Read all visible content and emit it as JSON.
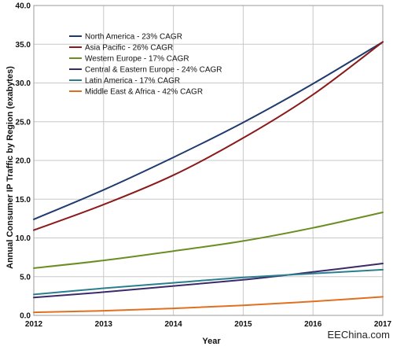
{
  "chart_data": {
    "type": "line",
    "title": "",
    "xlabel": "Year",
    "ylabel": "Annual Consumer IP Traffic by Region (exabytes)",
    "x": [
      2012,
      2013,
      2014,
      2015,
      2016,
      2017
    ],
    "x_tick_labels": [
      "2012",
      "2013",
      "2014",
      "2015",
      "2016",
      "2017"
    ],
    "y_tick_labels": [
      "0.0",
      "5.0",
      "10.0",
      "15.0",
      "20.0",
      "25.0",
      "30.0",
      "35.0",
      "40.0"
    ],
    "ylim": [
      0,
      40
    ],
    "xlim": [
      2012,
      2017
    ],
    "grid": true,
    "legend_position": "top-left",
    "series": [
      {
        "name": "North America - 23% CAGR",
        "color": "#1f3a6e",
        "values": [
          12.4,
          16.2,
          20.4,
          24.9,
          29.9,
          35.3
        ]
      },
      {
        "name": "Asia Pacific - 26% CAGR",
        "color": "#8b1a1a",
        "values": [
          11.0,
          14.3,
          18.1,
          22.9,
          28.5,
          35.3
        ]
      },
      {
        "name": "Western Europe - 17% CAGR",
        "color": "#6b8e23",
        "values": [
          6.1,
          7.1,
          8.3,
          9.6,
          11.3,
          13.3
        ]
      },
      {
        "name": "Central & Eastern Europe - 24% CAGR",
        "color": "#3b2a6b",
        "values": [
          2.3,
          3.0,
          3.8,
          4.6,
          5.6,
          6.7
        ]
      },
      {
        "name": "Latin America - 17% CAGR",
        "color": "#2a7f8f",
        "values": [
          2.7,
          3.5,
          4.2,
          4.9,
          5.4,
          5.9
        ]
      },
      {
        "name": "Middle East & Africa - 42% CAGR",
        "color": "#e07020",
        "values": [
          0.4,
          0.6,
          0.9,
          1.3,
          1.8,
          2.4
        ]
      }
    ]
  },
  "watermark": "EEChina.com"
}
